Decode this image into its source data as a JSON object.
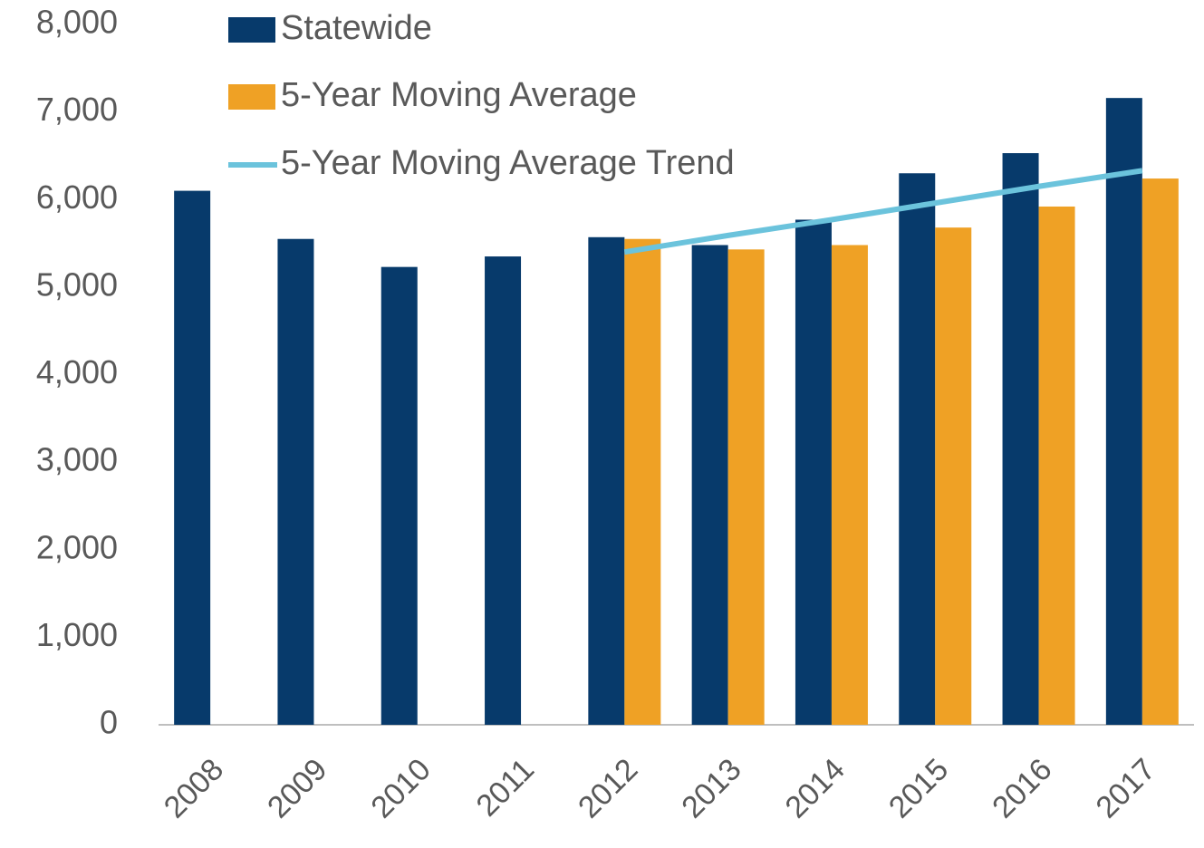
{
  "chart_data": {
    "type": "bar",
    "categories": [
      "2008",
      "2009",
      "2010",
      "2011",
      "2012",
      "2013",
      "2014",
      "2015",
      "2016",
      "2017"
    ],
    "series": [
      {
        "name": "Statewide",
        "color": "#073a6b",
        "values": [
          6100,
          5550,
          5230,
          5350,
          5570,
          5480,
          5770,
          6300,
          6530,
          7160
        ]
      },
      {
        "name": "5-Year Moving Average",
        "color": "#efa125",
        "values": [
          null,
          null,
          null,
          null,
          5550,
          5430,
          5480,
          5680,
          5920,
          6240
        ]
      },
      {
        "name": "5-Year Moving Average Trend",
        "color": "#6bc3dc",
        "type": "line",
        "values": [
          null,
          null,
          null,
          null,
          5400,
          5590,
          5770,
          5960,
          6150,
          6330
        ]
      }
    ],
    "ylim": [
      0,
      8000
    ],
    "yticks": [
      0,
      {
        "value": 1000,
        "label": "1,000"
      },
      {
        "value": 2000,
        "label": "2,000"
      },
      {
        "value": 3000,
        "label": "3,000"
      },
      {
        "value": 4000,
        "label": "4,000"
      },
      {
        "value": 5000,
        "label": "5,000"
      },
      {
        "value": 6000,
        "label": "6,000"
      },
      {
        "value": 7000,
        "label": "7,000"
      },
      {
        "value": 8000,
        "label": "8,000"
      }
    ],
    "legend": "top-left"
  }
}
